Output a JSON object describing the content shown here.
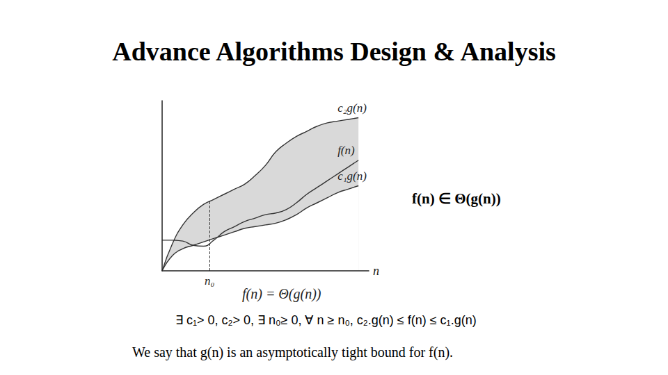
{
  "slide": {
    "title": "Advance Algorithms Design & Analysis",
    "formula": "f(n) ∈ Θ(g(n))",
    "definition": "∃ c₁> 0, c₂> 0, ∃ n₀≥ 0, ∀ n ≥ n₀, c₂.g(n) ≤ f(n) ≤ c₁.g(n)",
    "caption": "We say that g(n) is an asymptotically tight bound for f(n)."
  },
  "chart_data": {
    "type": "line",
    "title": "f(n) = Θ(g(n))",
    "x_label": "n",
    "x": [
      0,
      0.5,
      1,
      1.5,
      2,
      2.5,
      3,
      3.5,
      4,
      4.5,
      5,
      5.5,
      6,
      6.5,
      7,
      7.5,
      8,
      8.5,
      9,
      9.5
    ],
    "series": [
      {
        "name": "c₂g(n)",
        "color": "#333333",
        "values": [
          0,
          1.6,
          2.7,
          3.4,
          3.9,
          4.2,
          4.5,
          4.8,
          5.1,
          5.6,
          6.2,
          7.0,
          7.5,
          7.9,
          8.2,
          8.5,
          8.7,
          8.8,
          8.9,
          9.0
        ]
      },
      {
        "name": "c₁g(n)",
        "color": "#333333",
        "values": [
          0,
          0.9,
          1.3,
          1.5,
          1.7,
          1.9,
          2.1,
          2.3,
          2.5,
          2.6,
          2.7,
          2.8,
          3.0,
          3.3,
          3.7,
          4.0,
          4.3,
          4.6,
          4.8,
          5.0
        ]
      },
      {
        "name": "f(n)",
        "color": "#333333",
        "values": [
          1.8,
          1.8,
          1.75,
          1.5,
          1.45,
          1.8,
          2.3,
          2.6,
          2.9,
          3.1,
          3.3,
          3.4,
          3.6,
          4.0,
          4.5,
          4.9,
          5.3,
          5.7,
          6.1,
          6.5
        ]
      }
    ],
    "xlim": [
      0,
      10
    ],
    "ylim": [
      0,
      10
    ],
    "tick_labels": false,
    "grid": false,
    "n0": 2.3,
    "n0_label": "n₀"
  }
}
